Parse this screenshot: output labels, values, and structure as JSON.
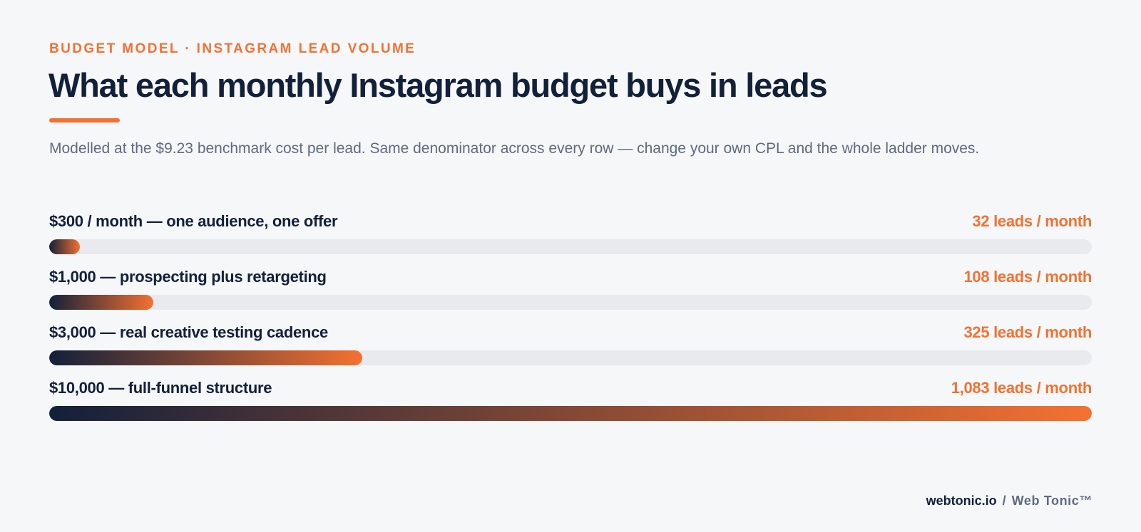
{
  "header": {
    "eyebrow": "BUDGET MODEL · INSTAGRAM LEAD VOLUME",
    "title": "What each monthly Instagram budget buys in leads",
    "subtitle": "Modelled at the $9.23 benchmark cost per lead. Same denominator across every row — change your own CPL and the whole ladder moves."
  },
  "colors": {
    "accent": "#f47131",
    "navy": "#13203a",
    "muted": "#5f6b7d",
    "track": "#e8eaee",
    "background": "#f6f7f9"
  },
  "chart_data": {
    "type": "bar",
    "orientation": "horizontal",
    "xlim": [
      0,
      1083
    ],
    "grid": false,
    "categories": [
      "$300 / month — one audience, one offer",
      "$1,000 — prospecting plus retargeting",
      "$3,000 — real creative testing cadence",
      "$10,000 — full-funnel structure"
    ],
    "values": [
      32,
      108,
      325,
      1083
    ],
    "value_labels": [
      "32 leads / month",
      "108 leads / month",
      "325 leads / month",
      "1,083 leads / month"
    ]
  },
  "footer": {
    "domain": "webtonic.io",
    "separator": "/",
    "brand": "Web Tonic™"
  }
}
